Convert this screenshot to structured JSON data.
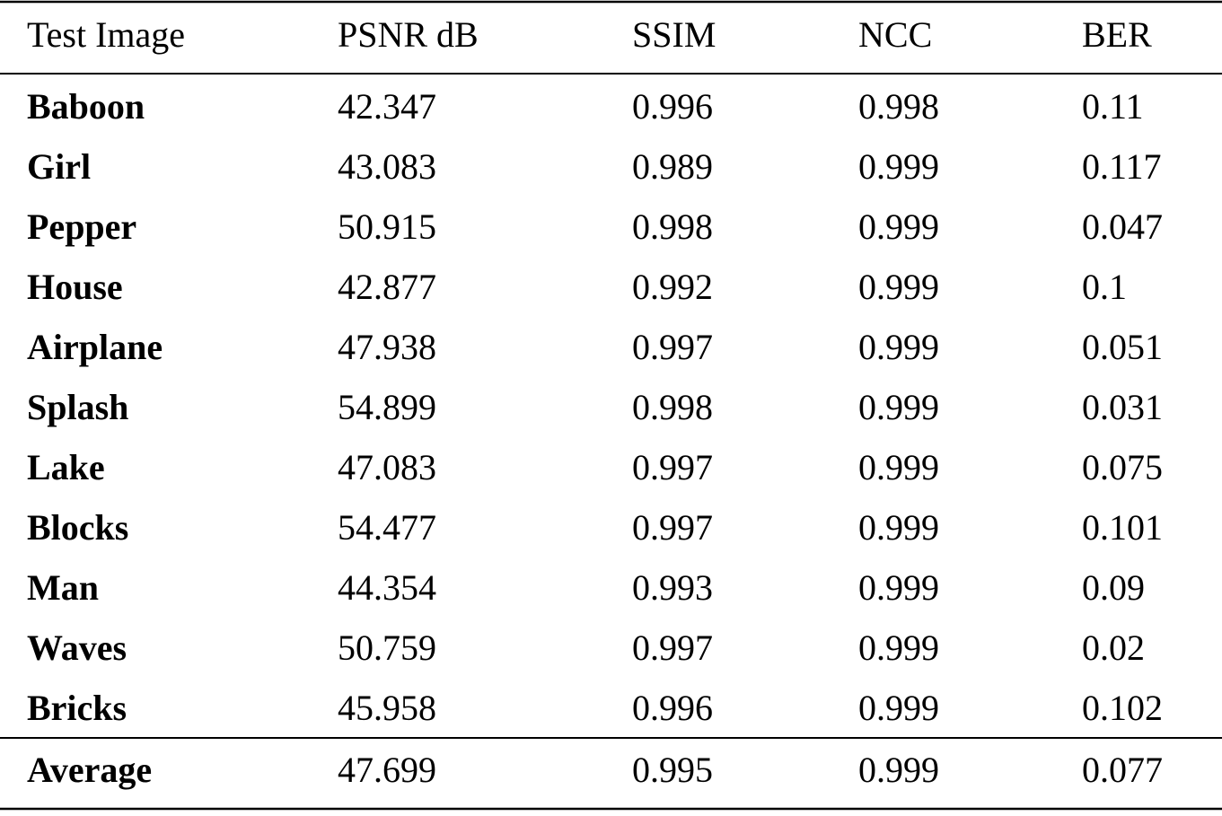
{
  "table": {
    "header": [
      "Test Image",
      "PSNR dB",
      "SSIM",
      "NCC",
      "BER"
    ],
    "rows": [
      [
        "Baboon",
        "42.347",
        "0.996",
        "0.998",
        "0.11"
      ],
      [
        "Girl",
        "43.083",
        "0.989",
        "0.999",
        "0.117"
      ],
      [
        "Pepper",
        "50.915",
        "0.998",
        "0.999",
        "0.047"
      ],
      [
        "House",
        "42.877",
        "0.992",
        "0.999",
        "0.1"
      ],
      [
        "Airplane",
        "47.938",
        "0.997",
        "0.999",
        "0.051"
      ],
      [
        "Splash",
        "54.899",
        "0.998",
        "0.999",
        "0.031"
      ],
      [
        "Lake",
        "47.083",
        "0.997",
        "0.999",
        "0.075"
      ],
      [
        "Blocks",
        "54.477",
        "0.997",
        "0.999",
        "0.101"
      ],
      [
        "Man",
        "44.354",
        "0.993",
        "0.999",
        "0.09"
      ],
      [
        "Waves",
        "50.759",
        "0.997",
        "0.999",
        "0.02"
      ],
      [
        "Bricks",
        "45.958",
        "0.996",
        "0.999",
        "0.102"
      ]
    ],
    "footer": [
      "Average",
      "47.699",
      "0.995",
      "0.999",
      "0.077"
    ]
  }
}
